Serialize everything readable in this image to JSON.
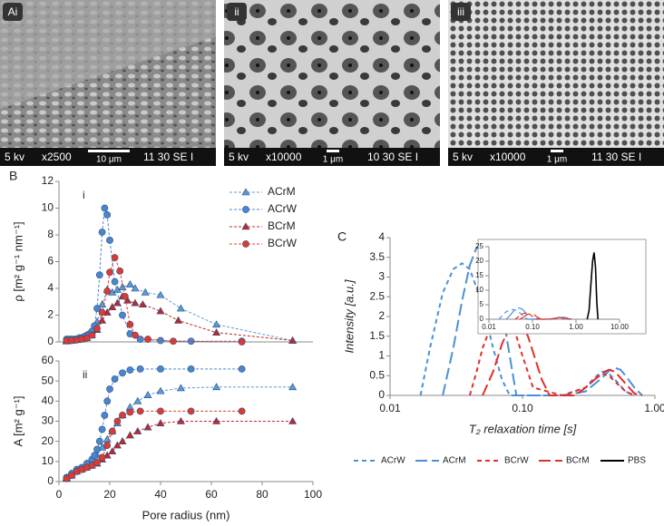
{
  "images": [
    {
      "label": "Ai",
      "footer": [
        "5 kv",
        "x2500",
        "10 μm",
        "11 30 SE I"
      ]
    },
    {
      "label": "ii",
      "footer": [
        "5 kv",
        "x10000",
        "1 μm",
        "10 30 SE I"
      ]
    },
    {
      "label": "iii",
      "footer": [
        "5 kv",
        "x10000",
        "1 μm",
        "11 30 SE I"
      ]
    }
  ],
  "panel_labels": [
    "B",
    "C"
  ],
  "chart_data": [
    {
      "type": "line",
      "panel_label": "i",
      "ylabel": "ρ [m² g⁻¹ nm⁻¹]",
      "xlim": [
        0,
        100
      ],
      "ylim": [
        0,
        12
      ],
      "yticks": [
        0,
        2,
        4,
        6,
        8,
        10,
        12
      ],
      "legend": "upper right",
      "series": [
        {
          "name": "ACrM",
          "color": "#5b9bd5",
          "marker": "triangle",
          "x": [
            3,
            5,
            7,
            9,
            11,
            13,
            15,
            17,
            19,
            21,
            23,
            25,
            28,
            30,
            34,
            40,
            48,
            62,
            92
          ],
          "values": [
            0.1,
            0.15,
            0.2,
            0.3,
            0.5,
            0.8,
            1.5,
            2.8,
            3.9,
            3.7,
            3.9,
            4.1,
            4.3,
            4.0,
            3.7,
            3.5,
            2.5,
            1.3,
            0.1
          ]
        },
        {
          "name": "ACrW",
          "color": "#4a86d0",
          "marker": "circle",
          "x": [
            3,
            4,
            5,
            6,
            7,
            8,
            9,
            10,
            11,
            12,
            13,
            14,
            15,
            16,
            17,
            18,
            19,
            20,
            22,
            25,
            28,
            32,
            40,
            52,
            72
          ],
          "values": [
            0.2,
            0.2,
            0.2,
            0.2,
            0.2,
            0.3,
            0.3,
            0.4,
            0.5,
            0.6,
            0.8,
            1.2,
            2.5,
            5,
            8.2,
            10,
            9.5,
            7.6,
            4.5,
            2,
            0.6,
            0.2,
            0.1,
            0.05,
            0.05
          ]
        },
        {
          "name": "BCrM",
          "color": "#c0282a",
          "marker": "triangle",
          "x": [
            3,
            5,
            7,
            9,
            11,
            13,
            15,
            17,
            19,
            21,
            23,
            25,
            27,
            30,
            33,
            40,
            47,
            62,
            92
          ],
          "values": [
            0.05,
            0.1,
            0.15,
            0.2,
            0.3,
            0.5,
            0.9,
            1.6,
            2.2,
            2.6,
            2.9,
            3.4,
            3.1,
            2.9,
            2.8,
            2.3,
            1.6,
            0.7,
            0.1
          ]
        },
        {
          "name": "BCrW",
          "color": "#e03a30",
          "marker": "circle",
          "x": [
            3,
            5,
            7,
            9,
            11,
            13,
            15,
            17,
            19,
            20,
            22,
            24,
            26,
            28,
            30,
            35,
            45,
            72
          ],
          "values": [
            0.1,
            0.1,
            0.15,
            0.2,
            0.3,
            0.5,
            1,
            2.2,
            3.8,
            5.2,
            6.3,
            5.3,
            3.4,
            1.3,
            0.5,
            0.2,
            0.05,
            0
          ]
        }
      ]
    },
    {
      "type": "line",
      "panel_label": "ii",
      "ylabel": "A [m² g⁻¹]",
      "xlabel": "Pore radius (nm)",
      "xlim": [
        0,
        100
      ],
      "xticks": [
        0,
        20,
        40,
        60,
        80,
        100
      ],
      "ylim": [
        0,
        60
      ],
      "yticks": [
        0,
        10,
        20,
        30,
        40,
        50,
        60
      ],
      "series": [
        {
          "name": "ACrM",
          "color": "#5b9bd5",
          "marker": "triangle",
          "x": [
            3,
            5,
            7,
            9,
            11,
            13,
            15,
            17,
            19,
            21,
            23,
            25,
            28,
            31,
            35,
            40,
            48,
            62,
            92
          ],
          "values": [
            2,
            4,
            6,
            7,
            9,
            11,
            13,
            17,
            21,
            25,
            29,
            33,
            37,
            40,
            43,
            45,
            46.5,
            47,
            47
          ]
        },
        {
          "name": "ACrW",
          "color": "#4a86d0",
          "marker": "circle",
          "x": [
            3,
            5,
            7,
            9,
            11,
            13,
            14,
            15,
            16,
            17,
            18,
            19,
            20,
            22,
            25,
            28,
            32,
            40,
            52,
            72
          ],
          "values": [
            2,
            4,
            6,
            7,
            9,
            11,
            13,
            16,
            20,
            26,
            33,
            40,
            46,
            51,
            54,
            55.5,
            56,
            56,
            56,
            56
          ]
        },
        {
          "name": "BCrM",
          "color": "#c0282a",
          "marker": "triangle",
          "x": [
            3,
            5,
            7,
            9,
            11,
            13,
            15,
            17,
            19,
            21,
            23,
            25,
            28,
            31,
            35,
            40,
            48,
            62,
            92
          ],
          "values": [
            1.5,
            3,
            5,
            6,
            7,
            8,
            9,
            11,
            13,
            15,
            18,
            20,
            23,
            25,
            27,
            29,
            30,
            30,
            30
          ]
        },
        {
          "name": "BCrW",
          "color": "#e03a30",
          "marker": "circle",
          "x": [
            3,
            5,
            7,
            9,
            11,
            13,
            15,
            17,
            19,
            21,
            23,
            25,
            28,
            32,
            40,
            52,
            72
          ],
          "values": [
            1.5,
            3,
            5,
            6,
            7,
            8,
            9.5,
            12,
            18,
            25,
            30,
            33,
            34.5,
            35,
            35,
            35,
            35
          ]
        }
      ]
    },
    {
      "type": "line",
      "ylabel": "Intensity [a.u.]",
      "xlabel": "T₂ relaxation time [s]",
      "xlog": true,
      "xlim": [
        0.01,
        1
      ],
      "xticks": [
        {
          "value": 0.01,
          "label": "0.01"
        },
        {
          "value": 0.1,
          "label": "0.10"
        },
        {
          "value": 1,
          "label": "1.00"
        }
      ],
      "ylim": [
        0,
        4
      ],
      "yticks": [
        0,
        0.5,
        1,
        1.5,
        2,
        2.5,
        3,
        3.5,
        4
      ],
      "legend": "bottom",
      "series": [
        {
          "name": "ACrW",
          "color": "#4a90d8",
          "dash": "short",
          "x": [
            0.017,
            0.02,
            0.025,
            0.03,
            0.035,
            0.04,
            0.05,
            0.06,
            0.07,
            0.08,
            0.2,
            0.3,
            0.35,
            0.4,
            0.45,
            0.5,
            0.6,
            0.7
          ],
          "values": [
            0,
            1.2,
            2.6,
            3.2,
            3.35,
            3.2,
            2.3,
            1.2,
            0.4,
            0,
            0,
            0.2,
            0.45,
            0.6,
            0.55,
            0.4,
            0.1,
            0
          ]
        },
        {
          "name": "ACrM",
          "color": "#4a90d8",
          "dash": "long",
          "x": [
            0.025,
            0.03,
            0.035,
            0.04,
            0.045,
            0.05,
            0.055,
            0.06,
            0.07,
            0.08,
            0.09,
            0.2,
            0.3,
            0.4,
            0.45,
            0.5,
            0.55,
            0.6,
            0.7,
            0.8
          ],
          "values": [
            0,
            1.2,
            2.4,
            3.3,
            3.75,
            3.85,
            3.7,
            3.3,
            2.2,
            1.0,
            0,
            0,
            0.1,
            0.45,
            0.62,
            0.7,
            0.65,
            0.5,
            0.2,
            0
          ]
        },
        {
          "name": "BCrW",
          "color": "#e0302a",
          "dash": "short",
          "x": [
            0.04,
            0.045,
            0.05,
            0.06,
            0.07,
            0.08,
            0.09,
            0.1,
            0.12,
            0.2,
            0.3,
            0.35,
            0.4,
            0.45,
            0.5,
            0.6,
            0.7
          ],
          "values": [
            0,
            0.6,
            1.2,
            1.9,
            2.15,
            2.0,
            1.5,
            1.0,
            0.2,
            0,
            0.2,
            0.4,
            0.55,
            0.5,
            0.35,
            0.1,
            0
          ]
        },
        {
          "name": "BCrM",
          "color": "#e0302a",
          "dash": "long",
          "x": [
            0.05,
            0.06,
            0.07,
            0.08,
            0.09,
            0.1,
            0.11,
            0.12,
            0.14,
            0.16,
            0.25,
            0.3,
            0.35,
            0.4,
            0.45,
            0.5,
            0.6,
            0.7,
            0.8
          ],
          "values": [
            0,
            0.6,
            1.3,
            1.75,
            1.9,
            1.8,
            1.5,
            1.1,
            0.4,
            0,
            0,
            0.2,
            0.4,
            0.58,
            0.65,
            0.6,
            0.3,
            0.05,
            0
          ]
        }
      ]
    },
    {
      "type": "line",
      "xlog": true,
      "xlim": [
        0.01,
        10
      ],
      "xticks": [
        {
          "value": 0.01,
          "label": "0.01"
        },
        {
          "value": 0.1,
          "label": "0.10"
        },
        {
          "value": 1,
          "label": "1.00"
        },
        {
          "value": 10,
          "label": "10.00"
        }
      ],
      "ylim": [
        0,
        25
      ],
      "yticks": [
        0,
        5,
        10,
        15,
        20,
        25
      ],
      "series": [
        {
          "name": "PBS",
          "color": "#000000",
          "dash": "solid",
          "x": [
            1.8,
            2.0,
            2.2,
            2.4,
            2.6,
            2.8,
            3.0,
            3.2
          ],
          "values": [
            0,
            3,
            12,
            20,
            23,
            18,
            6,
            0
          ]
        }
      ]
    }
  ]
}
